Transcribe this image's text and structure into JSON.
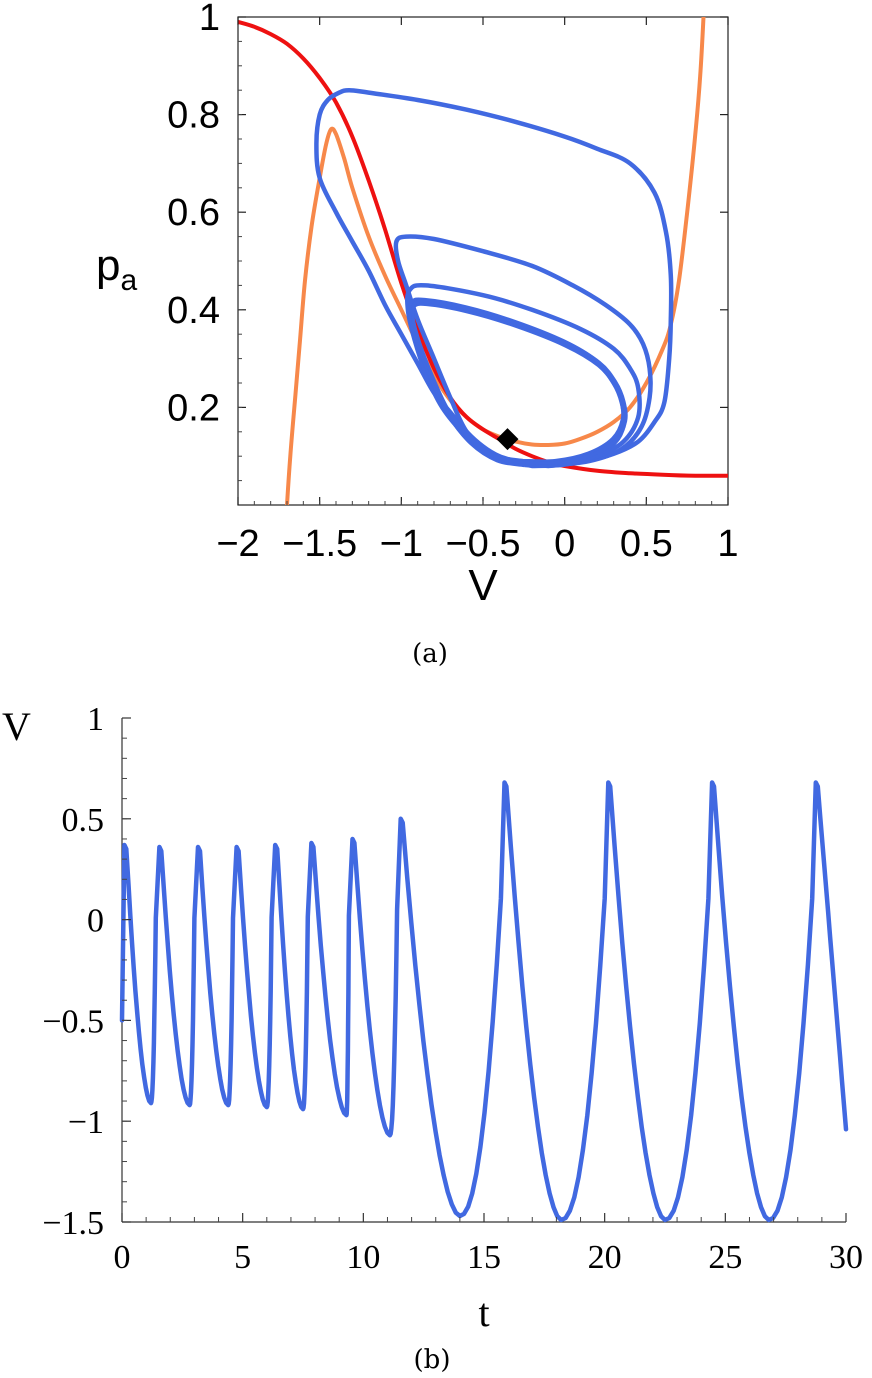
{
  "chart_data": [
    {
      "panel": "(a)",
      "type": "line",
      "xlabel": "V",
      "ylabel": "p",
      "ylabel_sub": "a",
      "xlim": [
        -2,
        1
      ],
      "ylim": [
        0,
        1
      ],
      "x_ticks": [
        -2,
        -1.5,
        -1,
        -0.5,
        0,
        0.5,
        1
      ],
      "x_tick_labels": [
        "−2",
        "−1.5",
        "−1",
        "−0.5",
        "0",
        "0.5",
        "1"
      ],
      "y_ticks": [
        0.2,
        0.4,
        0.6,
        0.8,
        1
      ],
      "y_tick_labels": [
        "0.2",
        "0.4",
        "0.6",
        "0.8",
        "1"
      ],
      "grid": false,
      "colors": {
        "red_curve": "#ee1111",
        "orange_curve": "#f7884a",
        "trajectory": "#4169e1",
        "marker": "#000000"
      },
      "series": [
        {
          "color_role": "red_curve",
          "points": [
            [
              -2,
              0.99
            ],
            [
              -1.9,
              0.98
            ],
            [
              -1.8,
              0.965
            ],
            [
              -1.7,
              0.945
            ],
            [
              -1.6,
              0.915
            ],
            [
              -1.5,
              0.875
            ],
            [
              -1.4,
              0.825
            ],
            [
              -1.3,
              0.755
            ],
            [
              -1.2,
              0.665
            ],
            [
              -1.1,
              0.565
            ],
            [
              -1.0,
              0.455
            ],
            [
              -0.9,
              0.36
            ],
            [
              -0.8,
              0.28
            ],
            [
              -0.7,
              0.22
            ],
            [
              -0.6,
              0.18
            ],
            [
              -0.5,
              0.155
            ],
            [
              -0.4,
              0.135
            ],
            [
              -0.3,
              0.115
            ],
            [
              -0.2,
              0.1
            ],
            [
              -0.1,
              0.088
            ],
            [
              0,
              0.08
            ],
            [
              0.2,
              0.07
            ],
            [
              0.4,
              0.065
            ],
            [
              0.6,
              0.062
            ],
            [
              0.8,
              0.06
            ],
            [
              1.0,
              0.06
            ]
          ]
        },
        {
          "color_role": "orange_curve",
          "points": [
            [
              -1.7,
              0
            ],
            [
              -1.68,
              0.1
            ],
            [
              -1.65,
              0.22
            ],
            [
              -1.62,
              0.34
            ],
            [
              -1.59,
              0.46
            ],
            [
              -1.55,
              0.57
            ],
            [
              -1.5,
              0.67
            ],
            [
              -1.46,
              0.74
            ],
            [
              -1.43,
              0.77
            ],
            [
              -1.4,
              0.76
            ],
            [
              -1.35,
              0.71
            ],
            [
              -1.3,
              0.65
            ],
            [
              -1.2,
              0.55
            ],
            [
              -1.1,
              0.47
            ],
            [
              -1.0,
              0.4
            ],
            [
              -0.9,
              0.33
            ],
            [
              -0.8,
              0.265
            ],
            [
              -0.7,
              0.215
            ],
            [
              -0.6,
              0.18
            ],
            [
              -0.5,
              0.155
            ],
            [
              -0.4,
              0.14
            ],
            [
              -0.3,
              0.13
            ],
            [
              -0.2,
              0.124
            ],
            [
              -0.1,
              0.123
            ],
            [
              0,
              0.126
            ],
            [
              0.1,
              0.136
            ],
            [
              0.2,
              0.15
            ],
            [
              0.3,
              0.17
            ],
            [
              0.4,
              0.2
            ],
            [
              0.5,
              0.25
            ],
            [
              0.6,
              0.32
            ],
            [
              0.65,
              0.37
            ],
            [
              0.7,
              0.46
            ],
            [
              0.75,
              0.6
            ],
            [
              0.8,
              0.76
            ],
            [
              0.83,
              0.88
            ],
            [
              0.85,
              1.0
            ]
          ]
        },
        {
          "color_role": "trajectory",
          "name_hidden": "large orbit",
          "points": [
            [
              -0.1,
              0.08
            ],
            [
              0.1,
              0.088
            ],
            [
              0.3,
              0.105
            ],
            [
              0.45,
              0.13
            ],
            [
              0.55,
              0.17
            ],
            [
              0.61,
              0.21
            ],
            [
              0.64,
              0.3
            ],
            [
              0.65,
              0.38
            ],
            [
              0.65,
              0.47
            ],
            [
              0.62,
              0.56
            ],
            [
              0.55,
              0.64
            ],
            [
              0.4,
              0.7
            ],
            [
              0.2,
              0.73
            ],
            [
              0,
              0.755
            ],
            [
              -0.3,
              0.785
            ],
            [
              -0.6,
              0.81
            ],
            [
              -0.9,
              0.83
            ],
            [
              -1.2,
              0.845
            ],
            [
              -1.32,
              0.85
            ],
            [
              -1.38,
              0.845
            ],
            [
              -1.45,
              0.83
            ],
            [
              -1.5,
              0.8
            ],
            [
              -1.52,
              0.74
            ],
            [
              -1.5,
              0.67
            ],
            [
              -1.4,
              0.6
            ],
            [
              -1.3,
              0.54
            ],
            [
              -1.2,
              0.48
            ],
            [
              -1.1,
              0.41
            ],
            [
              -1.0,
              0.35
            ],
            [
              -0.9,
              0.29
            ],
            [
              -0.8,
              0.23
            ],
            [
              -0.7,
              0.19
            ],
            [
              -0.6,
              0.15
            ],
            [
              -0.5,
              0.12
            ],
            [
              -0.4,
              0.1
            ],
            [
              -0.3,
              0.09
            ],
            [
              -0.2,
              0.083
            ],
            [
              -0.1,
              0.08
            ]
          ]
        },
        {
          "color_role": "trajectory",
          "name_hidden": "orbit 2",
          "points": [
            [
              -0.3,
              0.085
            ],
            [
              -0.1,
              0.082
            ],
            [
              0.15,
              0.09
            ],
            [
              0.35,
              0.115
            ],
            [
              0.47,
              0.16
            ],
            [
              0.52,
              0.22
            ],
            [
              0.52,
              0.28
            ],
            [
              0.48,
              0.33
            ],
            [
              0.4,
              0.37
            ],
            [
              0.25,
              0.41
            ],
            [
              0.05,
              0.45
            ],
            [
              -0.2,
              0.49
            ],
            [
              -0.5,
              0.52
            ],
            [
              -0.8,
              0.545
            ],
            [
              -0.97,
              0.55
            ],
            [
              -1.03,
              0.54
            ],
            [
              -1.02,
              0.5
            ],
            [
              -0.97,
              0.45
            ],
            [
              -0.9,
              0.38
            ],
            [
              -0.8,
              0.3
            ],
            [
              -0.7,
              0.22
            ],
            [
              -0.6,
              0.15
            ],
            [
              -0.45,
              0.1
            ],
            [
              -0.3,
              0.085
            ]
          ]
        },
        {
          "color_role": "trajectory",
          "name_hidden": "orbit 3",
          "points": [
            [
              -0.2,
              0.08
            ],
            [
              0,
              0.083
            ],
            [
              0.2,
              0.1
            ],
            [
              0.36,
              0.13
            ],
            [
              0.45,
              0.18
            ],
            [
              0.45,
              0.24
            ],
            [
              0.4,
              0.28
            ],
            [
              0.3,
              0.32
            ],
            [
              0.1,
              0.36
            ],
            [
              -0.2,
              0.4
            ],
            [
              -0.5,
              0.43
            ],
            [
              -0.85,
              0.45
            ],
            [
              -0.95,
              0.44
            ],
            [
              -0.96,
              0.4
            ],
            [
              -0.92,
              0.34
            ],
            [
              -0.85,
              0.27
            ],
            [
              -0.75,
              0.2
            ],
            [
              -0.6,
              0.14
            ],
            [
              -0.45,
              0.1
            ],
            [
              -0.2,
              0.08
            ]
          ]
        },
        {
          "color_role": "trajectory",
          "name_hidden": "limit cycle",
          "points": [
            [
              -0.25,
              0.085
            ],
            [
              -0.05,
              0.085
            ],
            [
              0.15,
              0.1
            ],
            [
              0.3,
              0.13
            ],
            [
              0.36,
              0.17
            ],
            [
              0.35,
              0.21
            ],
            [
              0.3,
              0.25
            ],
            [
              0.2,
              0.29
            ],
            [
              0.0,
              0.33
            ],
            [
              -0.3,
              0.37
            ],
            [
              -0.6,
              0.4
            ],
            [
              -0.85,
              0.415
            ],
            [
              -0.93,
              0.41
            ],
            [
              -0.94,
              0.38
            ],
            [
              -0.9,
              0.33
            ],
            [
              -0.82,
              0.26
            ],
            [
              -0.72,
              0.19
            ],
            [
              -0.58,
              0.13
            ],
            [
              -0.42,
              0.095
            ],
            [
              -0.25,
              0.085
            ]
          ]
        }
      ],
      "marker": {
        "shape": "diamond",
        "x": -0.35,
        "y": 0.135
      }
    },
    {
      "panel": "(b)",
      "type": "line",
      "xlabel": "t",
      "ylabel": "V",
      "xlim": [
        0,
        30
      ],
      "ylim": [
        -1.5,
        1
      ],
      "x_ticks": [
        0,
        5,
        10,
        15,
        20,
        25,
        30
      ],
      "x_tick_labels": [
        "0",
        "5",
        "10",
        "15",
        "20",
        "25",
        "30"
      ],
      "y_ticks": [
        -1.5,
        -1,
        -0.5,
        0,
        0.5,
        1
      ],
      "y_tick_labels": [
        "−1.5",
        "−1",
        "−0.5",
        "0",
        "0.5",
        "1"
      ],
      "grid": false,
      "colors": {
        "trace": "#4169e1"
      },
      "spikes": [
        {
          "t_start": 0,
          "t_peak": 0.1,
          "peak": 0.37,
          "t_min": 1.2,
          "min": -0.91
        },
        {
          "t_start": 1.4,
          "t_peak": 1.55,
          "peak": 0.36,
          "t_min": 2.8,
          "min": -0.92
        },
        {
          "t_start": 3.0,
          "t_peak": 3.15,
          "peak": 0.36,
          "t_min": 4.4,
          "min": -0.92
        },
        {
          "t_start": 4.6,
          "t_peak": 4.75,
          "peak": 0.36,
          "t_min": 6.0,
          "min": -0.93
        },
        {
          "t_start": 6.2,
          "t_peak": 6.35,
          "peak": 0.37,
          "t_min": 7.5,
          "min": -0.94
        },
        {
          "t_start": 7.7,
          "t_peak": 7.85,
          "peak": 0.38,
          "t_min": 9.3,
          "min": -0.97
        },
        {
          "t_start": 9.4,
          "t_peak": 9.55,
          "peak": 0.4,
          "t_min": 11.1,
          "min": -1.07
        },
        {
          "t_start": 11.4,
          "t_peak": 11.55,
          "peak": 0.5,
          "t_min": 14.0,
          "min": -1.47
        },
        {
          "t_start": 15.7,
          "t_peak": 15.85,
          "peak": 0.68,
          "t_min": 18.2,
          "min": -1.49
        },
        {
          "t_start": 20.0,
          "t_peak": 20.15,
          "peak": 0.68,
          "t_min": 22.5,
          "min": -1.49
        },
        {
          "t_start": 24.3,
          "t_peak": 24.45,
          "peak": 0.68,
          "t_min": 26.8,
          "min": -1.49
        },
        {
          "t_start": 28.6,
          "t_peak": 28.75,
          "peak": 0.68,
          "t_end": 30.0,
          "end": -1.04
        }
      ],
      "initial_value": -0.5
    }
  ],
  "captions": {
    "a": "(a)",
    "b": "(b)"
  }
}
